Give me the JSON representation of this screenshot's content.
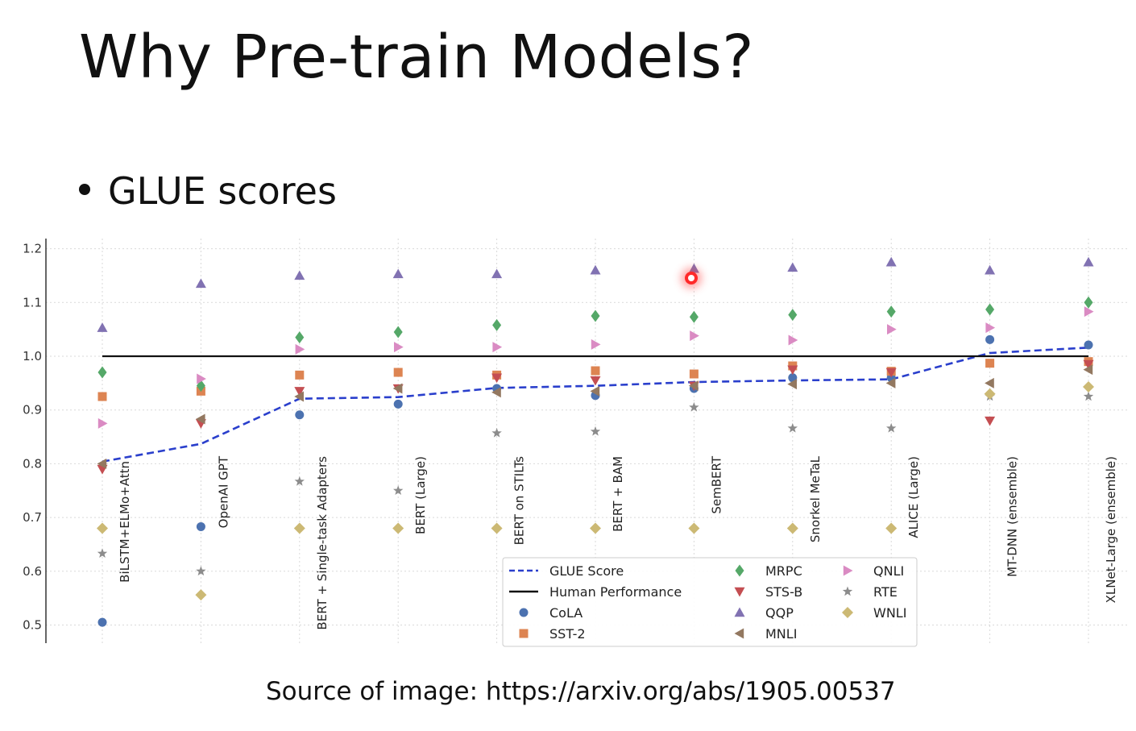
{
  "slide": {
    "title": "Why Pre-train Models?",
    "bullet": "GLUE scores",
    "source": "Source of image: https://arxiv.org/abs/1905.00537"
  },
  "chart_data": {
    "type": "scatter",
    "title": "",
    "xlabel": "",
    "ylabel": "",
    "ylim": [
      0.47,
      1.22
    ],
    "yticks": [
      "0.5",
      "0.6",
      "0.7",
      "0.8",
      "0.9",
      "1.0",
      "1.1",
      "1.2"
    ],
    "grid": true,
    "legend_position": "bottom-center",
    "categories": [
      "BiLSTM+ELMo+Attn",
      "OpenAI GPT",
      "BERT + Single-task Adapters",
      "BERT (Large)",
      "BERT on STILTs",
      "BERT + BAM",
      "SemBERT",
      "Snorkel MeTaL",
      "ALICE (Large)",
      "MT-DNN (ensemble)",
      "XLNet-Large (ensemble)"
    ],
    "lines": [
      {
        "name": "GLUE Score",
        "color": "#2a3fcc",
        "style": "dashed",
        "values": [
          0.804,
          0.837,
          0.921,
          0.924,
          0.941,
          0.945,
          0.952,
          0.955,
          0.957,
          1.006,
          1.016
        ]
      },
      {
        "name": "Human Performance",
        "color": "#111111",
        "style": "solid",
        "values": [
          1.0,
          1.0,
          1.0,
          1.0,
          1.0,
          1.0,
          1.0,
          1.0,
          1.0,
          1.0,
          1.0
        ]
      }
    ],
    "series": [
      {
        "name": "CoLA",
        "marker": "circle",
        "color": "#4c72b0",
        "values": [
          0.505,
          0.683,
          0.891,
          0.911,
          0.94,
          0.927,
          0.94,
          0.96,
          0.96,
          1.031,
          1.021
        ]
      },
      {
        "name": "SST-2",
        "marker": "square",
        "color": "#dd8452",
        "values": [
          0.925,
          0.935,
          0.965,
          0.97,
          0.965,
          0.973,
          0.967,
          0.982,
          0.972,
          0.987,
          0.99
        ]
      },
      {
        "name": "MRPC",
        "marker": "thin-diamond",
        "color": "#55a868",
        "values": [
          0.97,
          0.945,
          1.035,
          1.045,
          1.058,
          1.075,
          1.073,
          1.077,
          1.083,
          1.087,
          1.1
        ]
      },
      {
        "name": "STS-B",
        "marker": "triangle-down",
        "color": "#c44e52",
        "values": [
          0.79,
          0.875,
          0.935,
          0.94,
          0.96,
          0.955,
          0.945,
          0.975,
          0.97,
          0.88,
          0.985
        ]
      },
      {
        "name": "QQP",
        "marker": "triangle-up",
        "color": "#8172b2",
        "values": [
          1.053,
          1.135,
          1.15,
          1.153,
          1.153,
          1.16,
          1.163,
          1.165,
          1.175,
          1.16,
          1.175
        ]
      },
      {
        "name": "MNLI",
        "marker": "triangle-left",
        "color": "#937860",
        "values": [
          0.8,
          0.883,
          0.925,
          0.94,
          0.933,
          0.935,
          0.945,
          0.948,
          0.95,
          0.95,
          0.975
        ]
      },
      {
        "name": "QNLI",
        "marker": "triangle-right",
        "color": "#da8bc3",
        "values": [
          0.875,
          0.958,
          1.013,
          1.017,
          1.017,
          1.022,
          1.038,
          1.03,
          1.05,
          1.053,
          1.083
        ]
      },
      {
        "name": "RTE",
        "marker": "star",
        "color": "#8c8c8c",
        "values": [
          0.633,
          0.6,
          0.767,
          0.75,
          0.857,
          0.86,
          0.905,
          0.866,
          0.866,
          0.925,
          0.925
        ]
      },
      {
        "name": "WNLI",
        "marker": "diamond",
        "color": "#ccb974",
        "values": [
          0.68,
          0.556,
          0.68,
          0.68,
          0.68,
          0.68,
          0.68,
          0.68,
          0.68,
          0.93,
          0.943
        ]
      }
    ]
  }
}
